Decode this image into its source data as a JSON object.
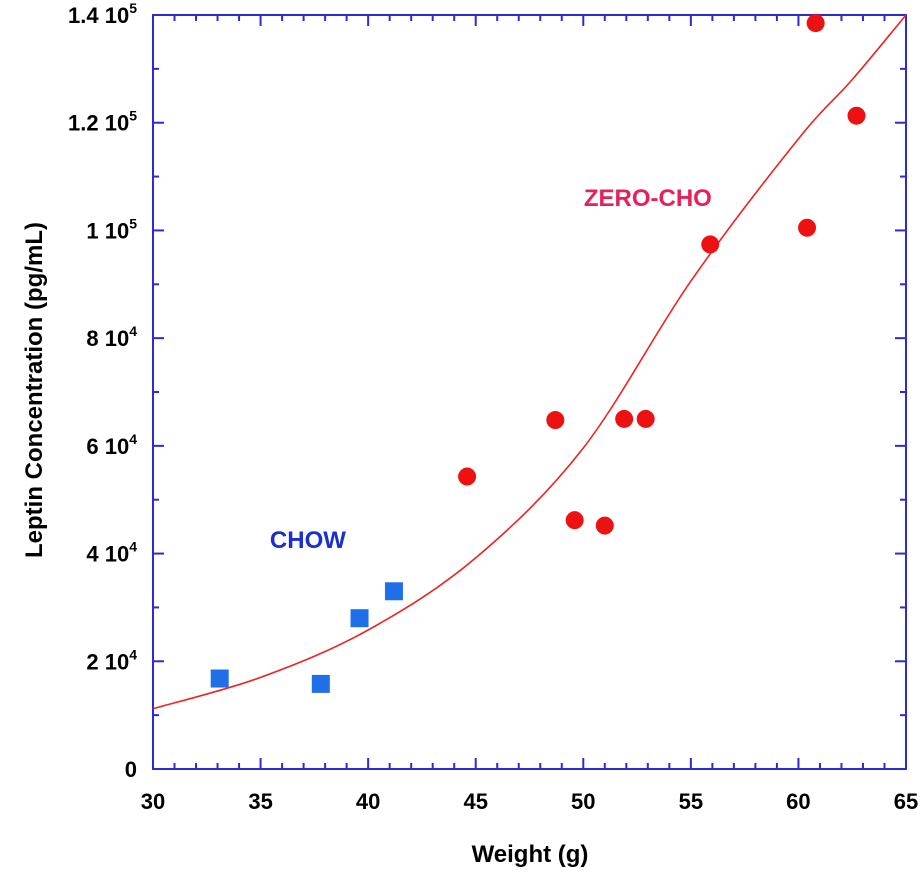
{
  "chart_data": {
    "type": "scatter",
    "xlabel": "Weight (g)",
    "ylabel": "Leptin Concentration (pg/mL)",
    "xlim": [
      30,
      65
    ],
    "ylim": [
      0,
      140000
    ],
    "x_ticks": [
      30,
      35,
      40,
      45,
      50,
      55,
      60,
      65
    ],
    "y_ticks": [
      {
        "value": 0,
        "mantissa": "0",
        "exponent": ""
      },
      {
        "value": 20000,
        "mantissa": "2 10",
        "exponent": "4"
      },
      {
        "value": 40000,
        "mantissa": "4 10",
        "exponent": "4"
      },
      {
        "value": 60000,
        "mantissa": "6 10",
        "exponent": "4"
      },
      {
        "value": 80000,
        "mantissa": "8 10",
        "exponent": "4"
      },
      {
        "value": 100000,
        "mantissa": "1 10",
        "exponent": "5"
      },
      {
        "value": 120000,
        "mantissa": "1.2 10",
        "exponent": "5"
      },
      {
        "value": 140000,
        "mantissa": "1.4 10",
        "exponent": "5"
      }
    ],
    "series": [
      {
        "name": "CHOW",
        "marker": "square",
        "color": "#1f6fe8",
        "points": [
          [
            33.1,
            16800
          ],
          [
            37.8,
            15800
          ],
          [
            39.6,
            28000
          ],
          [
            41.2,
            33000
          ]
        ]
      },
      {
        "name": "ZERO-CHO",
        "marker": "circle",
        "color": "#ee1111",
        "points": [
          [
            44.6,
            54300
          ],
          [
            48.7,
            64800
          ],
          [
            49.6,
            46200
          ],
          [
            51.0,
            45200
          ],
          [
            51.9,
            65000
          ],
          [
            52.9,
            65000
          ],
          [
            55.9,
            97400
          ],
          [
            60.4,
            100500
          ],
          [
            60.8,
            138500
          ],
          [
            62.7,
            121300
          ]
        ]
      }
    ],
    "fit_curve": {
      "type": "exponential",
      "color": "#ee2222",
      "points": [
        [
          30,
          11200
        ],
        [
          35,
          17000
        ],
        [
          40,
          25800
        ],
        [
          45,
          39200
        ],
        [
          50,
          59600
        ],
        [
          55,
          90600
        ],
        [
          60,
          117000
        ],
        [
          62.5,
          128000
        ],
        [
          65,
          140000
        ]
      ]
    },
    "annotations": [
      {
        "text": "CHOW",
        "color": "#1a2fd0",
        "x": 37.2,
        "y": 41000
      },
      {
        "text": "ZERO-CHO",
        "color": "#e8205a",
        "x": 53.0,
        "y": 104500
      }
    ],
    "grid": false,
    "frame_color": "#2b2bd6"
  }
}
